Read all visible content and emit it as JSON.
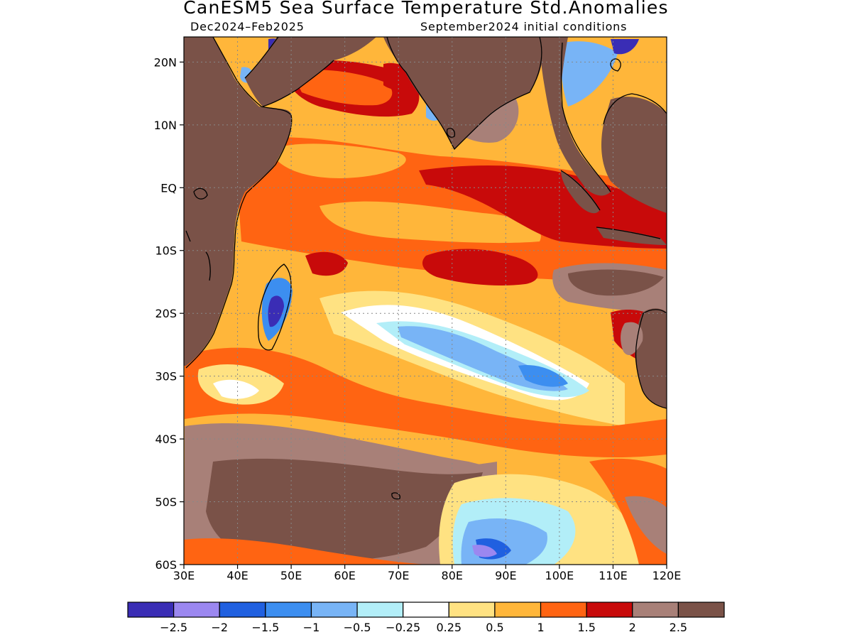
{
  "title": "CanESM5 Sea Surface Temperature Std.Anomalies",
  "period": "Dec2024–Feb2025",
  "init": "September2024 initial conditions",
  "map": {
    "lat_ticks": [
      "20N",
      "10N",
      "EQ",
      "10S",
      "20S",
      "30S",
      "40S",
      "50S",
      "60S"
    ],
    "lat_values": [
      20,
      10,
      0,
      -10,
      -20,
      -30,
      -40,
      -50,
      -60
    ],
    "lon_ticks": [
      "30E",
      "40E",
      "50E",
      "60E",
      "70E",
      "80E",
      "90E",
      "100E",
      "110E",
      "120E"
    ],
    "lon_values": [
      30,
      40,
      50,
      60,
      70,
      80,
      90,
      100,
      110,
      120
    ],
    "lat_range": [
      -60,
      24
    ],
    "lon_range": [
      30,
      120
    ],
    "land_color": "#7a5248"
  },
  "legend": {
    "colors": [
      "#3a2db5",
      "#9b87f0",
      "#2060e0",
      "#3c8ef0",
      "#78b4f6",
      "#b2eef8",
      "#ffffff",
      "#ffe282",
      "#ffb63a",
      "#ff6412",
      "#c80a0a",
      "#a88078",
      "#7a5248"
    ],
    "labels": [
      "−2.5",
      "−2",
      "−1.5",
      "−1",
      "−0.5",
      "−0.25",
      "0.25",
      "0.5",
      "1",
      "1.5",
      "2",
      "2.5"
    ]
  }
}
